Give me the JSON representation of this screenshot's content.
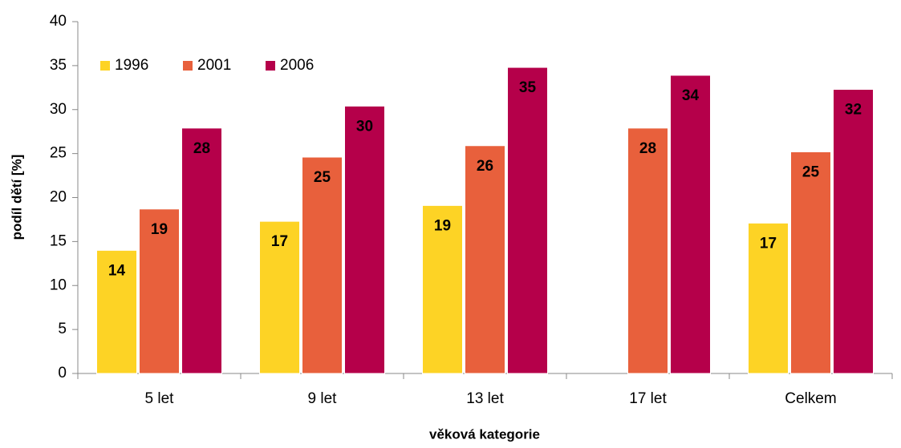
{
  "chart_data": {
    "type": "bar",
    "y_label": "podíl dětí [%]",
    "x_label": "věková kategorie",
    "categories": [
      "5 let",
      "9 let",
      "13 let",
      "17 let",
      "Celkem"
    ],
    "series": [
      {
        "name": "1996",
        "color": "#fdd325",
        "values": [
          14.0,
          17.3,
          19.1,
          null,
          17.1
        ],
        "value_labels": [
          "14",
          "17",
          "19",
          null,
          "17"
        ]
      },
      {
        "name": "2001",
        "color": "#e8603c",
        "values": [
          18.7,
          24.6,
          25.9,
          27.9,
          25.2
        ],
        "value_labels": [
          "19",
          "25",
          "26",
          "28",
          "25"
        ]
      },
      {
        "name": "2006",
        "color": "#b5004a",
        "values": [
          27.9,
          30.4,
          34.8,
          33.9,
          32.3
        ],
        "value_labels": [
          "28",
          "30",
          "35",
          "34",
          "32"
        ]
      }
    ],
    "ylim": [
      0,
      40
    ],
    "yticks": [
      0,
      5,
      10,
      15,
      20,
      25,
      30,
      35,
      40
    ],
    "legend": "top-left"
  }
}
